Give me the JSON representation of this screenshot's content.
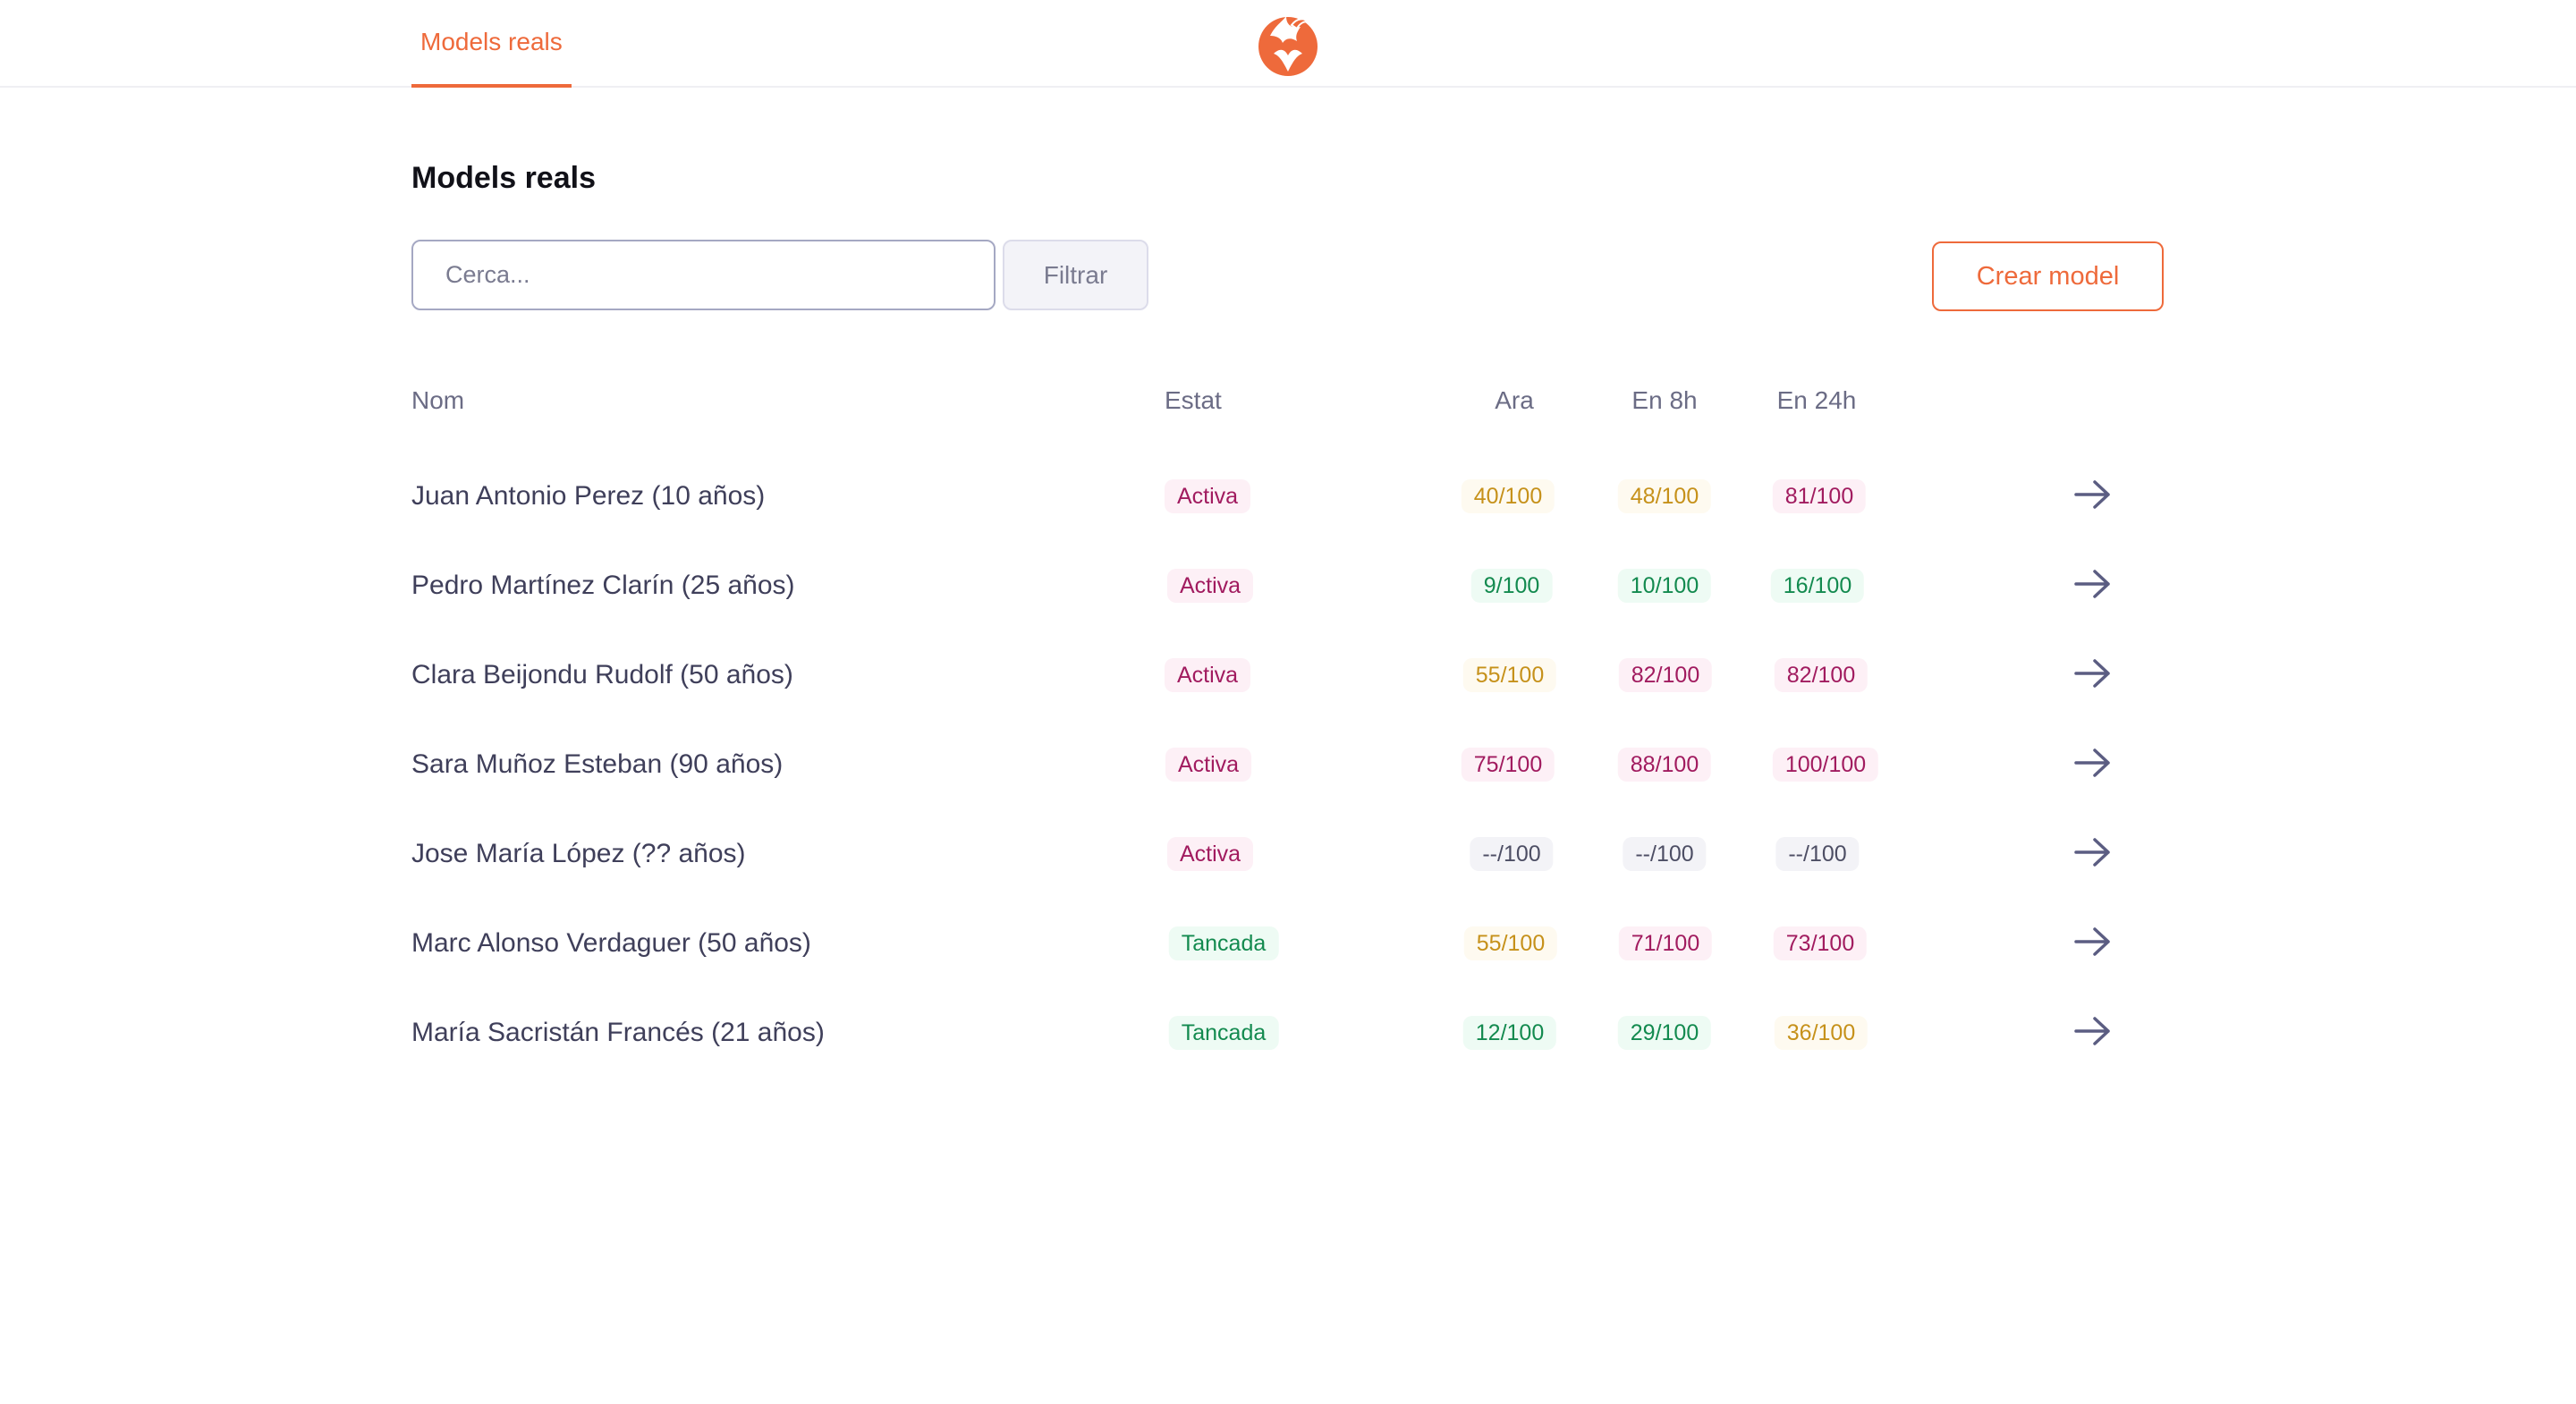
{
  "header": {
    "nav_tab": "Models reals",
    "logo_icon": "phoenix-logo-icon",
    "accent_color": "#ee6a3b"
  },
  "page": {
    "title": "Models reals"
  },
  "toolbar": {
    "search_placeholder": "Cerca...",
    "search_value": "",
    "filter_label": "Filtrar",
    "create_label": "Crear model"
  },
  "table": {
    "columns": {
      "name": "Nom",
      "status": "Estat",
      "now": "Ara",
      "in_8h": "En 8h",
      "in_24h": "En 24h"
    },
    "rows": [
      {
        "name": "Juan Antonio Perez (10 años)",
        "status": "Activa",
        "now": "40/100",
        "in_8h": "48/100",
        "in_24h": "81/100"
      },
      {
        "name": "Pedro Martínez Clarín (25 años)",
        "status": "Activa",
        "now": "9/100",
        "in_8h": "10/100",
        "in_24h": "16/100"
      },
      {
        "name": "Clara Beijondu Rudolf (50 años)",
        "status": "Activa",
        "now": "55/100",
        "in_8h": "82/100",
        "in_24h": "82/100"
      },
      {
        "name": "Sara Muñoz Esteban (90 años)",
        "status": "Activa",
        "now": "75/100",
        "in_8h": "88/100",
        "in_24h": "100/100"
      },
      {
        "name": "Jose María López (?? años)",
        "status": "Activa",
        "now": "--/100",
        "in_8h": "--/100",
        "in_24h": "--/100"
      },
      {
        "name": "Marc Alonso Verdaguer (50 años)",
        "status": "Tancada",
        "now": "55/100",
        "in_8h": "71/100",
        "in_24h": "73/100"
      },
      {
        "name": "María Sacristán Francés (21 años)",
        "status": "Tancada",
        "now": "12/100",
        "in_8h": "29/100",
        "in_24h": "36/100"
      }
    ],
    "row_action_icon": "arrow-right-icon"
  },
  "colors": {
    "good_text": "#138a4f",
    "warn_text": "#c6911a",
    "bad_text": "#a11b5f",
    "none_text": "#4d4e64"
  }
}
